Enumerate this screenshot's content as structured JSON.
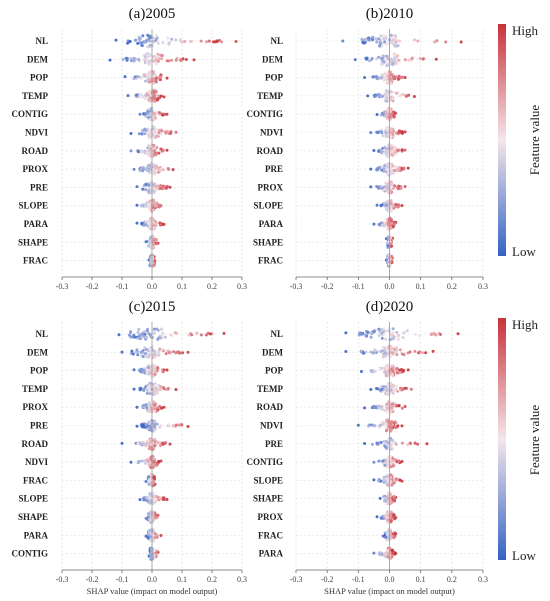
{
  "chart_data": {
    "type": "scatter",
    "subtype": "shap-beeswarm",
    "shared": {
      "xlim": [
        -0.3,
        0.3
      ],
      "x_ticks": [
        "-0.3",
        "-0.2",
        "-0.1",
        "0.0",
        "0.1",
        "0.2",
        "0.3"
      ],
      "xlabel": "SHAP value (impact on model output)",
      "grid": true,
      "colorbar": {
        "title": "Feature value",
        "high": "High",
        "low": "Low",
        "high_color": "#c8323b",
        "low_color": "#3563c4"
      }
    },
    "panels": [
      {
        "title": "(a)2005",
        "xlabel": "",
        "features": [
          {
            "name": "NL",
            "min": -0.12,
            "max": 0.28,
            "spread": 0.13
          },
          {
            "name": "DEM",
            "min": -0.14,
            "max": 0.14,
            "spread": 0.08
          },
          {
            "name": "POP",
            "min": -0.09,
            "max": 0.05,
            "spread": 0.05
          },
          {
            "name": "TEMP",
            "min": -0.08,
            "max": 0.04,
            "spread": 0.045
          },
          {
            "name": "CONTIG",
            "min": -0.04,
            "max": 0.05,
            "spread": 0.03
          },
          {
            "name": "NDVI",
            "min": -0.07,
            "max": 0.08,
            "spread": 0.05
          },
          {
            "name": "ROAD",
            "min": -0.07,
            "max": 0.05,
            "spread": 0.04
          },
          {
            "name": "PROX",
            "min": -0.06,
            "max": 0.07,
            "spread": 0.04
          },
          {
            "name": "PRE",
            "min": -0.05,
            "max": 0.06,
            "spread": 0.04
          },
          {
            "name": "SLOPE",
            "min": -0.05,
            "max": 0.03,
            "spread": 0.03
          },
          {
            "name": "PARA",
            "min": -0.05,
            "max": 0.04,
            "spread": 0.03
          },
          {
            "name": "SHAPE",
            "min": -0.02,
            "max": 0.02,
            "spread": 0.015
          },
          {
            "name": "FRAC",
            "min": -0.01,
            "max": 0.01,
            "spread": 0.008
          }
        ]
      },
      {
        "title": "(b)2010",
        "xlabel": "",
        "features": [
          {
            "name": "NL",
            "min": -0.15,
            "max": 0.23,
            "spread": 0.12
          },
          {
            "name": "DEM",
            "min": -0.11,
            "max": 0.15,
            "spread": 0.08
          },
          {
            "name": "POP",
            "min": -0.08,
            "max": 0.05,
            "spread": 0.04
          },
          {
            "name": "TEMP",
            "min": -0.07,
            "max": 0.08,
            "spread": 0.045
          },
          {
            "name": "CONTIG",
            "min": -0.04,
            "max": 0.02,
            "spread": 0.025
          },
          {
            "name": "NDVI",
            "min": -0.06,
            "max": 0.05,
            "spread": 0.04
          },
          {
            "name": "ROAD",
            "min": -0.05,
            "max": 0.05,
            "spread": 0.035
          },
          {
            "name": "PRE",
            "min": -0.06,
            "max": 0.06,
            "spread": 0.04
          },
          {
            "name": "PROX",
            "min": -0.06,
            "max": 0.05,
            "spread": 0.035
          },
          {
            "name": "SLOPE",
            "min": -0.04,
            "max": 0.04,
            "spread": 0.03
          },
          {
            "name": "PARA",
            "min": -0.05,
            "max": 0.02,
            "spread": 0.025
          },
          {
            "name": "SHAPE",
            "min": -0.01,
            "max": 0.01,
            "spread": 0.01
          },
          {
            "name": "FRAC",
            "min": -0.01,
            "max": 0.01,
            "spread": 0.008
          }
        ]
      },
      {
        "title": "(c)2015",
        "xlabel": "SHAP value (impact on model output)",
        "features": [
          {
            "name": "NL",
            "min": -0.11,
            "max": 0.24,
            "spread": 0.13
          },
          {
            "name": "DEM",
            "min": -0.1,
            "max": 0.12,
            "spread": 0.08
          },
          {
            "name": "POP",
            "min": -0.06,
            "max": 0.05,
            "spread": 0.04
          },
          {
            "name": "TEMP",
            "min": -0.06,
            "max": 0.08,
            "spread": 0.045
          },
          {
            "name": "PROX",
            "min": -0.05,
            "max": 0.04,
            "spread": 0.035
          },
          {
            "name": "PRE",
            "min": -0.05,
            "max": 0.12,
            "spread": 0.035
          },
          {
            "name": "ROAD",
            "min": -0.1,
            "max": 0.06,
            "spread": 0.035
          },
          {
            "name": "NDVI",
            "min": -0.07,
            "max": 0.03,
            "spread": 0.03
          },
          {
            "name": "FRAC",
            "min": -0.02,
            "max": 0.01,
            "spread": 0.012
          },
          {
            "name": "SLOPE",
            "min": -0.04,
            "max": 0.05,
            "spread": 0.025
          },
          {
            "name": "SHAPE",
            "min": -0.02,
            "max": 0.02,
            "spread": 0.015
          },
          {
            "name": "PARA",
            "min": -0.02,
            "max": 0.03,
            "spread": 0.015
          },
          {
            "name": "CONTIG",
            "min": -0.01,
            "max": 0.02,
            "spread": 0.01
          }
        ]
      },
      {
        "title": "(d)2020",
        "xlabel": "SHAP value (impact on model output)",
        "features": [
          {
            "name": "NL",
            "min": -0.14,
            "max": 0.22,
            "spread": 0.12
          },
          {
            "name": "DEM",
            "min": -0.14,
            "max": 0.14,
            "spread": 0.08
          },
          {
            "name": "POP",
            "min": -0.09,
            "max": 0.06,
            "spread": 0.045
          },
          {
            "name": "TEMP",
            "min": -0.06,
            "max": 0.07,
            "spread": 0.04
          },
          {
            "name": "ROAD",
            "min": -0.08,
            "max": 0.05,
            "spread": 0.04
          },
          {
            "name": "NDVI",
            "min": -0.1,
            "max": 0.04,
            "spread": 0.04
          },
          {
            "name": "PRE",
            "min": -0.08,
            "max": 0.12,
            "spread": 0.035
          },
          {
            "name": "CONTIG",
            "min": -0.05,
            "max": 0.04,
            "spread": 0.03
          },
          {
            "name": "SLOPE",
            "min": -0.05,
            "max": 0.04,
            "spread": 0.03
          },
          {
            "name": "SHAPE",
            "min": -0.03,
            "max": 0.02,
            "spread": 0.02
          },
          {
            "name": "PROX",
            "min": -0.04,
            "max": 0.02,
            "spread": 0.02
          },
          {
            "name": "FRAC",
            "min": -0.02,
            "max": 0.02,
            "spread": 0.012
          },
          {
            "name": "PARA",
            "min": -0.05,
            "max": 0.02,
            "spread": 0.015
          }
        ]
      }
    ]
  }
}
